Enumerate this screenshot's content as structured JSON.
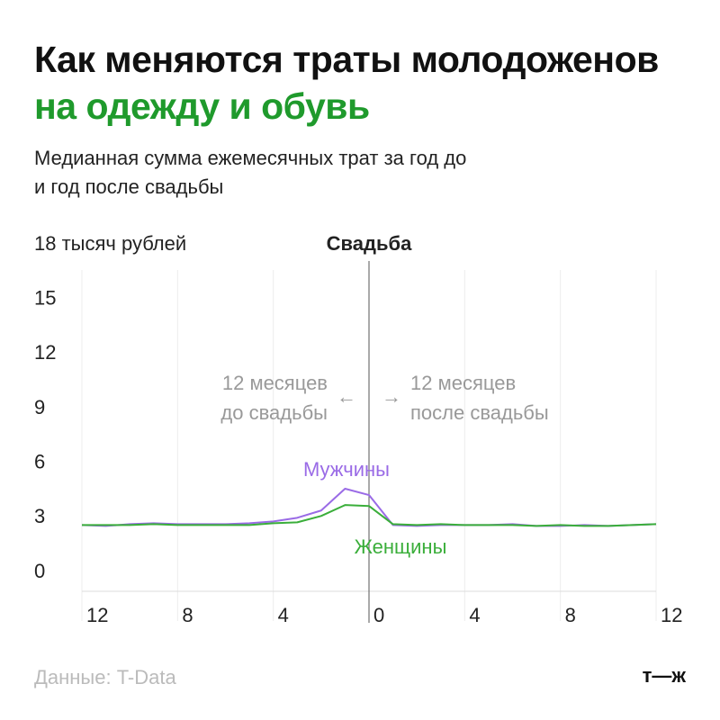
{
  "chart_data": {
    "type": "line",
    "title": "Как меняются траты молодоженов",
    "title_highlight": "на одежду и обувь",
    "title_highlight_color": "#1f9a2c",
    "subtitle": "Медианная сумма ежемесячных трат за год до и год после свадьбы",
    "event_label": "Свадьба",
    "event_x": 0,
    "annotations": [
      {
        "lines": [
          "12 месяцев",
          "до свадьбы"
        ],
        "arrow": "←",
        "side": "left"
      },
      {
        "lines": [
          "12 месяцев",
          "после свадьбы"
        ],
        "arrow": "→",
        "side": "right"
      }
    ],
    "x": [
      -12,
      -11,
      -10,
      -9,
      -8,
      -7,
      -6,
      -5,
      -4,
      -3,
      -2,
      -1,
      0,
      1,
      2,
      3,
      4,
      5,
      6,
      7,
      8,
      9,
      10,
      11,
      12
    ],
    "series": [
      {
        "name": "Мужчины",
        "color": "#9a6be6",
        "values": [
          2.6,
          2.55,
          2.65,
          2.7,
          2.65,
          2.65,
          2.65,
          2.7,
          2.8,
          3.0,
          3.4,
          4.6,
          4.25,
          2.6,
          2.55,
          2.6,
          2.6,
          2.6,
          2.65,
          2.55,
          2.55,
          2.6,
          2.55,
          2.6,
          2.65
        ]
      },
      {
        "name": "Женщины",
        "color": "#3aae3a",
        "values": [
          2.6,
          2.6,
          2.6,
          2.65,
          2.6,
          2.6,
          2.6,
          2.6,
          2.7,
          2.75,
          3.1,
          3.7,
          3.65,
          2.65,
          2.6,
          2.65,
          2.6,
          2.6,
          2.6,
          2.55,
          2.6,
          2.55,
          2.55,
          2.6,
          2.65
        ]
      }
    ],
    "xlim": [
      -12,
      12
    ],
    "xticks": [
      {
        "value": -12,
        "label": "12"
      },
      {
        "value": -8,
        "label": "8"
      },
      {
        "value": -4,
        "label": "4"
      },
      0,
      4,
      8,
      12
    ],
    "ylim": [
      0,
      18
    ],
    "yticks": [
      0,
      3,
      6,
      9,
      12,
      15,
      {
        "value": 18,
        "label": "18 тысяч рублей"
      }
    ],
    "grid": true,
    "source": "Данные: T-Data",
    "logo": "т—ж"
  }
}
